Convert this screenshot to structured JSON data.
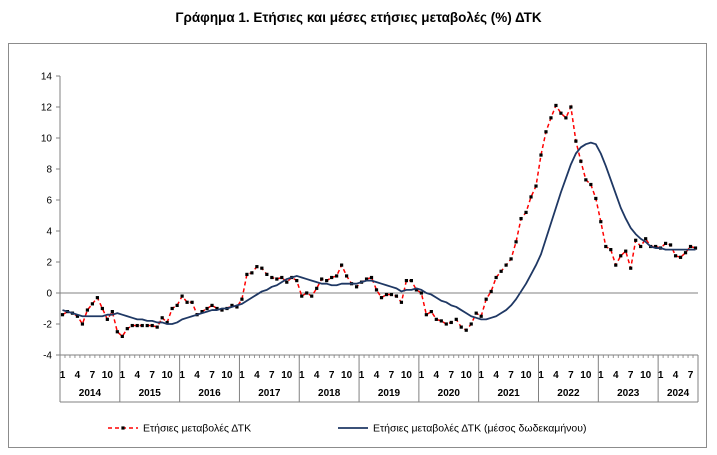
{
  "chart_data": {
    "type": "line",
    "title": "Γράφημα 1. Ετήσιες και μέσες ετήσιες μεταβολές (%) ΔΤΚ",
    "xlabel": "",
    "ylabel": "",
    "ylim": [
      -4,
      14
    ],
    "yticks": [
      "-4",
      "-2",
      "0",
      "2",
      "4",
      "6",
      "8",
      "10",
      "12",
      "14"
    ],
    "month_tick_labels": [
      "1",
      "4",
      "7",
      "10"
    ],
    "years": [
      "2014",
      "2015",
      "2016",
      "2017",
      "2018",
      "2019",
      "2020",
      "2021",
      "2022",
      "2023",
      "2024"
    ],
    "start": "2014-01",
    "legend_position": "bottom",
    "series": [
      {
        "name": "Ετήσιες μεταβολές ΔΤΚ",
        "color": "#ff0000",
        "style": "dashed-markers",
        "values": [
          -1.4,
          -1.2,
          -1.3,
          -1.5,
          -2.0,
          -1.1,
          -0.7,
          -0.3,
          -1.0,
          -1.7,
          -1.2,
          -2.5,
          -2.8,
          -2.3,
          -2.1,
          -2.1,
          -2.1,
          -2.1,
          -2.1,
          -2.2,
          -1.6,
          -1.9,
          -1.0,
          -0.8,
          -0.2,
          -0.6,
          -0.6,
          -1.4,
          -1.2,
          -1.0,
          -0.8,
          -1.0,
          -1.1,
          -1.0,
          -0.8,
          -0.9,
          -0.4,
          1.2,
          1.3,
          1.7,
          1.6,
          1.2,
          1.0,
          0.9,
          1.0,
          0.7,
          1.0,
          0.8,
          -0.2,
          0.0,
          -0.2,
          0.3,
          0.9,
          0.8,
          1.0,
          1.1,
          1.8,
          1.1,
          0.6,
          0.4,
          0.7,
          0.9,
          1.0,
          0.2,
          -0.3,
          -0.1,
          -0.1,
          -0.2,
          -0.6,
          0.8,
          0.8,
          0.2,
          0.0,
          -1.4,
          -1.2,
          -1.7,
          -1.8,
          -2.0,
          -1.9,
          -1.7,
          -2.2,
          -2.4,
          -2.0,
          -1.3,
          -1.5,
          -0.4,
          0.1,
          1.0,
          1.4,
          1.8,
          2.2,
          3.3,
          4.8,
          5.2,
          6.2,
          6.9,
          8.9,
          10.4,
          11.3,
          12.1,
          11.6,
          11.3,
          12.0,
          9.8,
          8.5,
          7.3,
          7.0,
          6.1,
          4.6,
          3.0,
          2.8,
          1.8,
          2.4,
          2.7,
          1.6,
          3.4,
          3.0,
          3.5,
          3.0,
          3.0,
          2.9,
          3.2,
          3.1,
          2.4,
          2.3,
          2.6,
          3.0,
          2.9
        ]
      },
      {
        "name": "Ετήσιες μεταβολές ΔΤΚ (μέσος δωδεκαμήνου)",
        "color": "#1f3864",
        "style": "solid",
        "values": [
          -1.1,
          -1.2,
          -1.3,
          -1.4,
          -1.5,
          -1.5,
          -1.5,
          -1.5,
          -1.5,
          -1.4,
          -1.4,
          -1.3,
          -1.4,
          -1.5,
          -1.6,
          -1.7,
          -1.7,
          -1.8,
          -1.8,
          -1.9,
          -1.9,
          -2.0,
          -2.0,
          -1.9,
          -1.7,
          -1.6,
          -1.5,
          -1.4,
          -1.3,
          -1.2,
          -1.1,
          -1.1,
          -1.0,
          -1.0,
          -0.9,
          -0.8,
          -0.7,
          -0.5,
          -0.3,
          -0.1,
          0.1,
          0.2,
          0.4,
          0.5,
          0.7,
          0.9,
          1.0,
          1.1,
          1.0,
          0.9,
          0.8,
          0.7,
          0.6,
          0.6,
          0.5,
          0.5,
          0.6,
          0.6,
          0.6,
          0.6,
          0.7,
          0.8,
          0.8,
          0.7,
          0.6,
          0.5,
          0.4,
          0.3,
          0.1,
          0.2,
          0.2,
          0.3,
          0.2,
          0.0,
          -0.1,
          -0.3,
          -0.5,
          -0.6,
          -0.8,
          -0.9,
          -1.1,
          -1.3,
          -1.5,
          -1.6,
          -1.7,
          -1.7,
          -1.6,
          -1.5,
          -1.3,
          -1.1,
          -0.8,
          -0.4,
          0.1,
          0.6,
          1.2,
          1.8,
          2.5,
          3.5,
          4.5,
          5.5,
          6.5,
          7.4,
          8.3,
          9.0,
          9.4,
          9.6,
          9.7,
          9.6,
          9.0,
          8.2,
          7.3,
          6.4,
          5.5,
          4.8,
          4.2,
          3.8,
          3.5,
          3.3,
          3.0,
          2.9,
          2.9,
          2.8,
          2.8,
          2.8,
          2.8,
          2.8,
          2.8,
          2.8
        ]
      }
    ]
  }
}
